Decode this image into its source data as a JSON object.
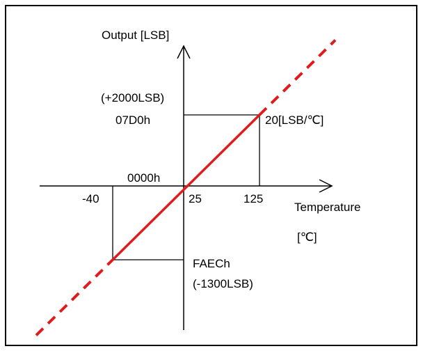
{
  "chart_data": {
    "type": "line",
    "xlabel": "Temperature",
    "xunit": "[℃]",
    "ylabel": "Output [LSB]",
    "origin_label": "0000h",
    "x_ticks": [
      "-40",
      "25",
      "125"
    ],
    "points": [
      {
        "x": -40,
        "y": -1300
      },
      {
        "x": 25,
        "y": 0
      },
      {
        "x": 125,
        "y": 2000
      }
    ],
    "upper_point_labels": {
      "hex": "07D0h",
      "lsb": "(+2000LSB)"
    },
    "lower_point_labels": {
      "hex": "FAECh",
      "lsb": "(-1300LSB)"
    },
    "slope_label": "20[LSB/℃]",
    "line_color": "#e01b1b",
    "extrapolation_style": "dashed"
  }
}
